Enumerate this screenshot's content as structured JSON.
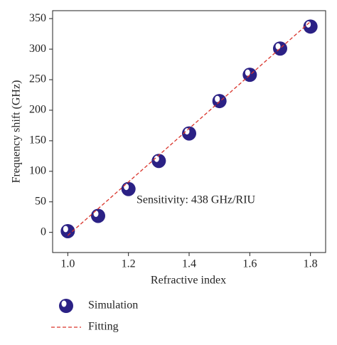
{
  "chart_data": {
    "type": "scatter",
    "x_label": "Refractive index",
    "y_label": "Frequency shift (GHz)",
    "annotation": "Sensitivity: 438 GHz/RIU",
    "xlim": [
      0.95,
      1.85
    ],
    "ylim": [
      -33,
      363
    ],
    "xticks": [
      {
        "value": 1,
        "label": "1.0"
      },
      1.2,
      1.4,
      1.6,
      1.8
    ],
    "yticks": [
      0,
      50,
      100,
      150,
      200,
      250,
      300,
      350
    ],
    "legend": "bottom",
    "series": [
      {
        "name": "Simulation",
        "type": "scatter",
        "color": "#2b2185",
        "x": [
          1.0,
          1.1,
          1.2,
          1.3,
          1.4,
          1.5,
          1.6,
          1.7,
          1.8
        ],
        "values": [
          2,
          27,
          71,
          117,
          162,
          215,
          258,
          301,
          337
        ]
      },
      {
        "name": "Fitting",
        "type": "line",
        "color": "#d9342b",
        "x": [
          1.0,
          1.8
        ],
        "values": [
          -5,
          345
        ]
      }
    ]
  }
}
